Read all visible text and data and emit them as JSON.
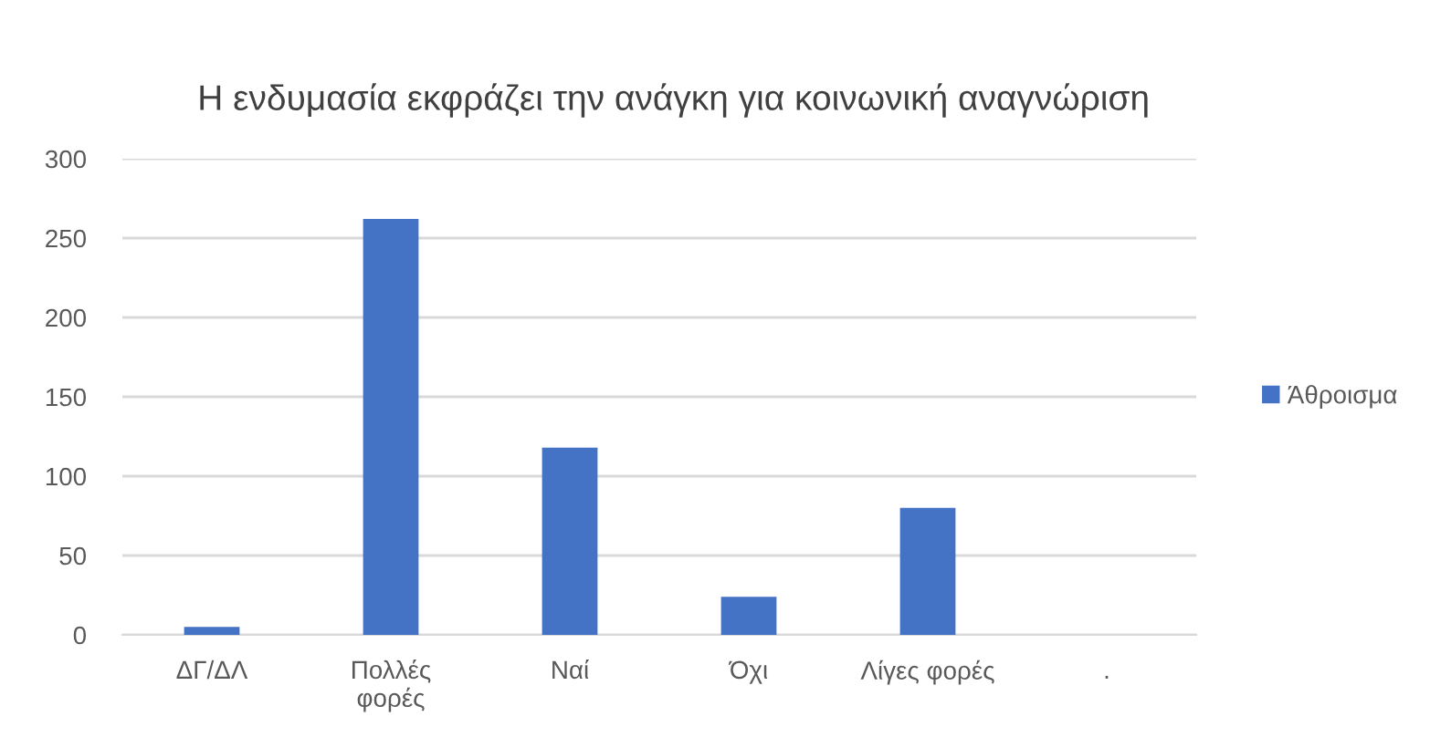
{
  "chart_data": {
    "type": "bar",
    "title": "Η ενδυμασία εκφράζει την ανάγκη για κοινωνική αναγνώριση",
    "categories": [
      "ΔΓ/ΔΛ",
      "Πολλές\nφορές",
      "Ναί",
      "Όχι",
      "Λίγες φορές",
      "."
    ],
    "series": [
      {
        "name": "Άθροισμα",
        "color": "#4472c4",
        "values": [
          5,
          262,
          118,
          24,
          80,
          null
        ]
      }
    ],
    "ylim": [
      0,
      300
    ],
    "yticks": [
      0,
      50,
      100,
      150,
      200,
      250,
      300
    ],
    "grid": "y",
    "legend": "right"
  }
}
